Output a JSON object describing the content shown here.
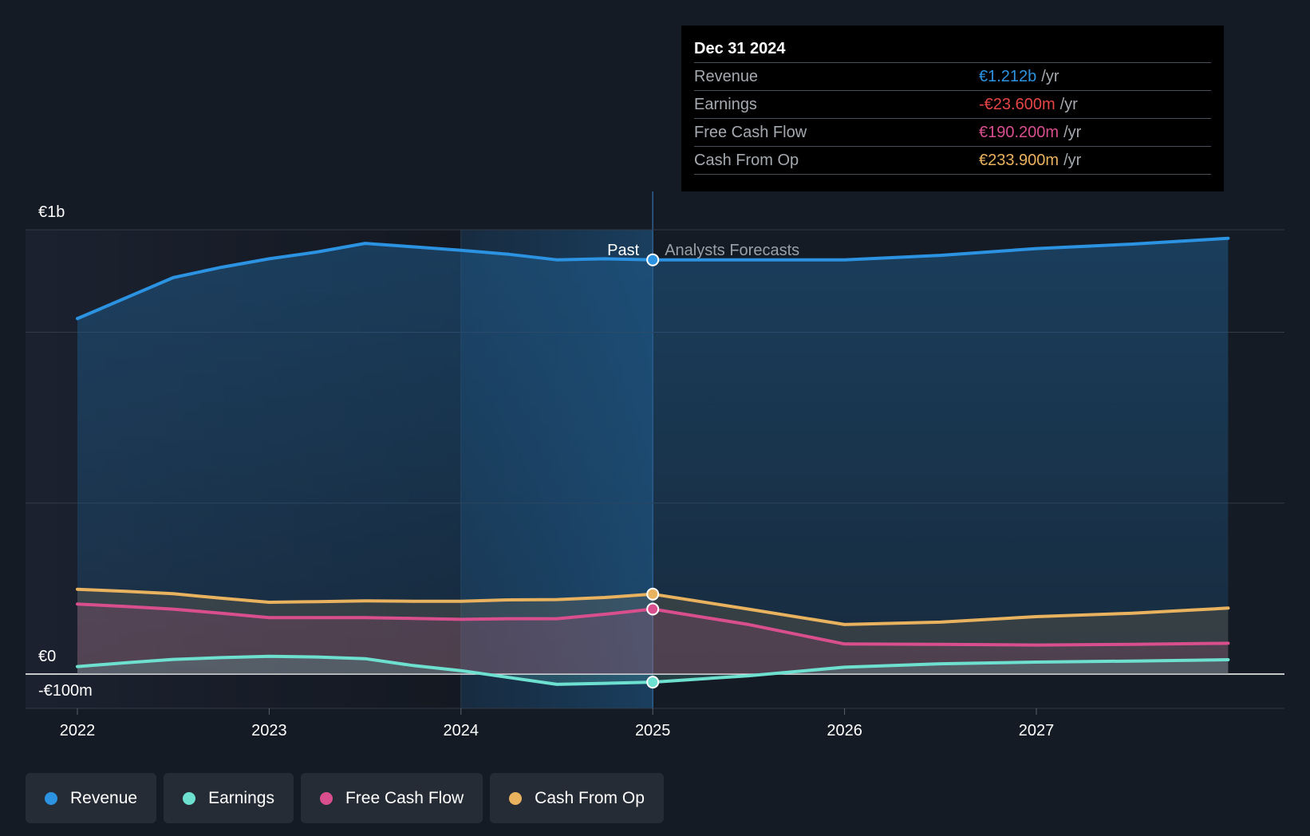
{
  "chart_data": {
    "type": "area",
    "x_unit": "year",
    "x_ticks": [
      "2022",
      "2023",
      "2024",
      "2025",
      "2026",
      "2027"
    ],
    "x_range": [
      2021.75,
      2028.0
    ],
    "y_ticks": [
      {
        "value": 1300,
        "label": "€1b"
      },
      {
        "value": 0,
        "label": "€0"
      },
      {
        "value": -100,
        "label": "-€100m"
      }
    ],
    "y_range": [
      -100,
      1300
    ],
    "y_gridlines": [
      1300,
      1000,
      500,
      0,
      -100
    ],
    "past_label": "Past",
    "forecast_label": "Analysts Forecasts",
    "past_split_x": 2025.0,
    "highlight_range": [
      2024.0,
      2025.0
    ],
    "series": [
      {
        "name": "Revenue",
        "color": "#2b93e2",
        "points": [
          [
            2022,
            1040
          ],
          [
            2022.25,
            1100
          ],
          [
            2022.5,
            1160
          ],
          [
            2022.75,
            1190
          ],
          [
            2023,
            1215
          ],
          [
            2023.25,
            1235
          ],
          [
            2023.5,
            1260
          ],
          [
            2023.75,
            1250
          ],
          [
            2024,
            1240
          ],
          [
            2024.25,
            1228
          ],
          [
            2024.5,
            1212
          ],
          [
            2024.75,
            1215
          ],
          [
            2025,
            1212
          ],
          [
            2025.5,
            1212
          ],
          [
            2026,
            1212
          ],
          [
            2026.5,
            1225
          ],
          [
            2027,
            1245
          ],
          [
            2027.5,
            1258
          ],
          [
            2028,
            1275
          ]
        ]
      },
      {
        "name": "Earnings",
        "color": "#6ee0d0",
        "points": [
          [
            2022,
            22
          ],
          [
            2022.25,
            33
          ],
          [
            2022.5,
            43
          ],
          [
            2022.75,
            48
          ],
          [
            2023,
            52
          ],
          [
            2023.25,
            50
          ],
          [
            2023.5,
            45
          ],
          [
            2023.75,
            25
          ],
          [
            2024,
            10
          ],
          [
            2024.25,
            -10
          ],
          [
            2024.5,
            -30
          ],
          [
            2024.75,
            -27
          ],
          [
            2025,
            -23.6
          ],
          [
            2025.5,
            -5
          ],
          [
            2026,
            20
          ],
          [
            2026.5,
            30
          ],
          [
            2027,
            35
          ],
          [
            2027.5,
            38
          ],
          [
            2028,
            42
          ]
        ]
      },
      {
        "name": "Free Cash Flow",
        "color": "#d94f8e",
        "points": [
          [
            2022,
            205
          ],
          [
            2022.25,
            198
          ],
          [
            2022.5,
            190
          ],
          [
            2022.75,
            178
          ],
          [
            2023,
            165
          ],
          [
            2023.25,
            165
          ],
          [
            2023.5,
            165
          ],
          [
            2023.75,
            163
          ],
          [
            2024,
            160
          ],
          [
            2024.25,
            162
          ],
          [
            2024.5,
            162
          ],
          [
            2024.75,
            175
          ],
          [
            2025,
            190.2
          ],
          [
            2025.5,
            145
          ],
          [
            2026,
            88
          ],
          [
            2026.5,
            87
          ],
          [
            2027,
            85
          ],
          [
            2027.5,
            87
          ],
          [
            2028,
            90
          ]
        ]
      },
      {
        "name": "Cash From Op",
        "color": "#e9b25f",
        "points": [
          [
            2022,
            248
          ],
          [
            2022.25,
            242
          ],
          [
            2022.5,
            235
          ],
          [
            2022.75,
            222
          ],
          [
            2023,
            210
          ],
          [
            2023.25,
            212
          ],
          [
            2023.5,
            214
          ],
          [
            2023.75,
            213
          ],
          [
            2024,
            213
          ],
          [
            2024.25,
            217
          ],
          [
            2024.5,
            218
          ],
          [
            2024.75,
            224
          ],
          [
            2025,
            233.9
          ],
          [
            2025.5,
            190
          ],
          [
            2026,
            145
          ],
          [
            2026.5,
            152
          ],
          [
            2027,
            168
          ],
          [
            2027.5,
            178
          ],
          [
            2028,
            193
          ]
        ]
      }
    ]
  },
  "tooltip": {
    "date": "Dec 31 2024",
    "rows": [
      {
        "label": "Revenue",
        "value": "€1.212b",
        "unit": "/yr",
        "color": "#2b93e2"
      },
      {
        "label": "Earnings",
        "value": "-€23.600m",
        "unit": "/yr",
        "color": "#e64545"
      },
      {
        "label": "Free Cash Flow",
        "value": "€190.200m",
        "unit": "/yr",
        "color": "#d94f8e"
      },
      {
        "label": "Cash From Op",
        "value": "€233.900m",
        "unit": "/yr",
        "color": "#e9b25f"
      }
    ]
  },
  "legend": [
    {
      "label": "Revenue",
      "color": "#2b93e2"
    },
    {
      "label": "Earnings",
      "color": "#6ee0d0"
    },
    {
      "label": "Free Cash Flow",
      "color": "#d94f8e"
    },
    {
      "label": "Cash From Op",
      "color": "#e9b25f"
    }
  ]
}
